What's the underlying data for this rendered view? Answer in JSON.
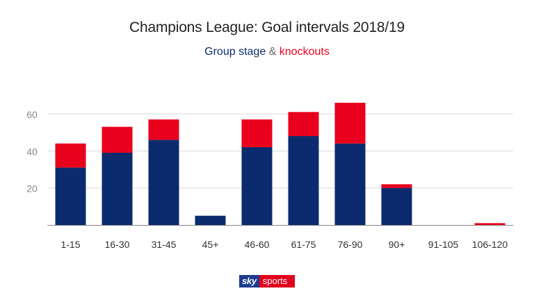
{
  "chart_data": {
    "type": "bar",
    "stacked": true,
    "title": "Champions League: Goal intervals 2018/19",
    "subtitle": {
      "parts": [
        {
          "text": "Group stage",
          "color": "#0b2b6e"
        },
        {
          "text": " & ",
          "color": "#666666"
        },
        {
          "text": "knockouts",
          "color": "#e8001c"
        }
      ]
    },
    "categories": [
      "1-15",
      "16-30",
      "31-45",
      "45+",
      "46-60",
      "61-75",
      "76-90",
      "90+",
      "91-105",
      "106-120"
    ],
    "series": [
      {
        "name": "Group stage",
        "color": "#0b2b6e",
        "values": [
          31,
          39,
          46,
          5,
          42,
          48,
          44,
          20,
          0,
          0
        ]
      },
      {
        "name": "knockouts",
        "color": "#e8001c",
        "values": [
          13,
          14,
          11,
          0,
          15,
          13,
          22,
          2,
          0,
          1
        ]
      }
    ],
    "ylim": [
      0,
      70
    ],
    "yticks": [
      20,
      40,
      60
    ],
    "grid": true,
    "xlabel": "",
    "ylabel": ""
  },
  "logo": {
    "part1": "sky",
    "part2": "sports"
  }
}
